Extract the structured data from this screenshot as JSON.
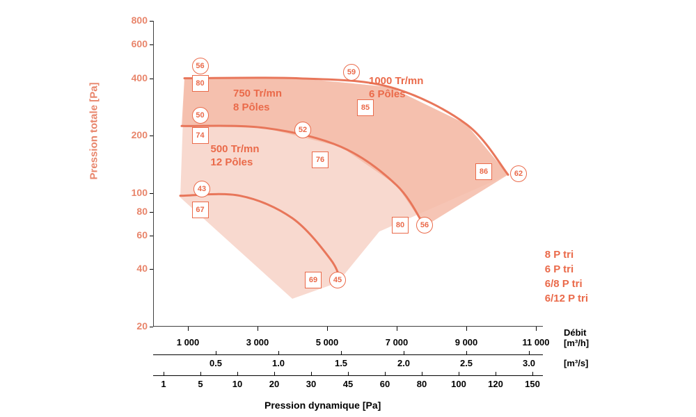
{
  "chart": {
    "type": "fan-performance-curves-log",
    "background_color": "#ffffff",
    "accent_color": "#ea6a4a",
    "fill_light": "#f8d9cf",
    "fill_mid": "#f4bba8",
    "curve_color": "#e8765a",
    "curve_width": 3,
    "text_color_black": "#000000",
    "y_axis": {
      "label": "Pression totale [Pa]",
      "scale": "log",
      "min": 20,
      "max": 800,
      "ticks": [
        20,
        40,
        60,
        80,
        100,
        200,
        400,
        600,
        800
      ]
    },
    "x_axis_1": {
      "label_left": "",
      "label_right": "Débit",
      "unit": "[m³/h]",
      "ticks": [
        "1 000",
        "3 000",
        "5 000",
        "7 000",
        "9 000",
        "11 000"
      ]
    },
    "x_axis_2": {
      "unit": "[m³/s]",
      "ticks": [
        "0.5",
        "1.0",
        "1.5",
        "2.0",
        "2.5",
        "3.0"
      ]
    },
    "x_axis_3": {
      "label": "Pression dynamique [Pa]",
      "ticks": [
        "1",
        "5",
        "10",
        "20",
        "30",
        "45",
        "60",
        "80",
        "100",
        "120",
        "150"
      ]
    },
    "fill_polygon": [
      {
        "q": 780,
        "p": 95
      },
      {
        "q": 900,
        "p": 400
      },
      {
        "q": 4200,
        "p": 400
      },
      {
        "q": 6800,
        "p": 360
      },
      {
        "q": 9000,
        "p": 230
      },
      {
        "q": 10200,
        "p": 125
      },
      {
        "q": 6500,
        "p": 63
      },
      {
        "q": 5300,
        "p": 34
      },
      {
        "q": 4000,
        "p": 28
      },
      {
        "q": 780,
        "p": 95
      }
    ],
    "curves": [
      {
        "label_line1": "1000 Tr/mn",
        "label_line2": "6 Pôles",
        "label_q": 6200,
        "label_p": 420,
        "points": [
          {
            "q": 900,
            "p": 400
          },
          {
            "q": 4200,
            "p": 400
          },
          {
            "q": 6800,
            "p": 360
          },
          {
            "q": 9000,
            "p": 230
          },
          {
            "q": 10200,
            "p": 125
          }
        ]
      },
      {
        "label_line1": "750 Tr/mn",
        "label_line2": "8 Pôles",
        "label_q": 2300,
        "label_p": 360,
        "points": [
          {
            "q": 820,
            "p": 225
          },
          {
            "q": 3200,
            "p": 220
          },
          {
            "q": 5400,
            "p": 175
          },
          {
            "q": 7000,
            "p": 110
          },
          {
            "q": 7800,
            "p": 67
          }
        ]
      },
      {
        "label_line1": "500 Tr/mn",
        "label_line2": "12 Pôles",
        "label_q": 1650,
        "label_p": 185,
        "points": [
          {
            "q": 780,
            "p": 97
          },
          {
            "q": 2500,
            "p": 97
          },
          {
            "q": 4000,
            "p": 74
          },
          {
            "q": 5100,
            "p": 45
          },
          {
            "q": 5400,
            "p": 34
          }
        ]
      }
    ],
    "markers": [
      {
        "shape": "circle",
        "value": "56",
        "q": 1350,
        "p": 465
      },
      {
        "shape": "square",
        "value": "80",
        "q": 1350,
        "p": 375
      },
      {
        "shape": "circle",
        "value": "59",
        "q": 5700,
        "p": 430
      },
      {
        "shape": "square",
        "value": "85",
        "q": 6100,
        "p": 280
      },
      {
        "shape": "circle",
        "value": "62",
        "q": 10500,
        "p": 126
      },
      {
        "shape": "square",
        "value": "86",
        "q": 9500,
        "p": 130
      },
      {
        "shape": "circle",
        "value": "50",
        "q": 1350,
        "p": 255
      },
      {
        "shape": "square",
        "value": "74",
        "q": 1350,
        "p": 200
      },
      {
        "shape": "circle",
        "value": "52",
        "q": 4300,
        "p": 215
      },
      {
        "shape": "square",
        "value": "76",
        "q": 4800,
        "p": 150
      },
      {
        "shape": "circle",
        "value": "56",
        "q": 7800,
        "p": 68
      },
      {
        "shape": "square",
        "value": "80",
        "q": 7100,
        "p": 68
      },
      {
        "shape": "circle",
        "value": "43",
        "q": 1400,
        "p": 105
      },
      {
        "shape": "square",
        "value": "67",
        "q": 1350,
        "p": 82
      },
      {
        "shape": "circle",
        "value": "45",
        "q": 5300,
        "p": 35
      },
      {
        "shape": "square",
        "value": "69",
        "q": 4600,
        "p": 35
      }
    ],
    "legend_lines": [
      "8 P tri",
      "6 P tri",
      "6/8 P tri",
      "6/12 P tri"
    ]
  }
}
